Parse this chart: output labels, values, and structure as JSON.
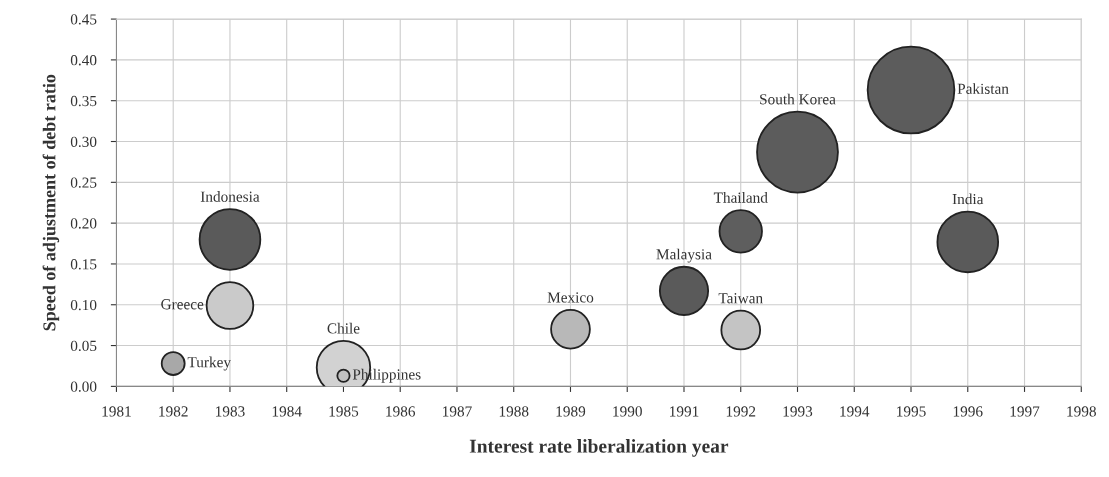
{
  "chart_data": {
    "type": "bubble",
    "xlabel": "Interest rate liberalization year",
    "ylabel": "Speed of adjustment of debt ratio",
    "xlim": [
      1981,
      1998
    ],
    "xticks": [
      1981,
      1982,
      1983,
      1984,
      1985,
      1986,
      1987,
      1988,
      1989,
      1990,
      1991,
      1992,
      1993,
      1994,
      1995,
      1996,
      1997,
      1998
    ],
    "ylim": [
      0,
      0.45
    ],
    "yticks": [
      {
        "value": 0,
        "label": "0.00"
      },
      {
        "value": 0.05,
        "label": "0.05"
      },
      {
        "value": 0.1,
        "label": "0.10"
      },
      {
        "value": 0.15,
        "label": "0.15"
      },
      {
        "value": 0.2,
        "label": "0.20"
      },
      {
        "value": 0.25,
        "label": "0.25"
      },
      {
        "value": 0.3,
        "label": "0.30"
      },
      {
        "value": 0.35,
        "label": "0.35"
      },
      {
        "value": 0.4,
        "label": "0.40"
      },
      {
        "value": 0.45,
        "label": "0.45"
      }
    ],
    "grid": true,
    "legend": false,
    "series": [
      {
        "name": "Turkey",
        "color": "#a8a8a8",
        "x": [
          1982
        ],
        "values": [
          0.028
        ],
        "sizes": [
          0.07
        ]
      },
      {
        "name": "Greece",
        "color": "#cacaca",
        "x": [
          1983
        ],
        "values": [
          0.099
        ],
        "sizes": [
          0.29
        ]
      },
      {
        "name": "Indonesia",
        "color": "#5a5a5a",
        "x": [
          1983
        ],
        "values": [
          0.18
        ],
        "sizes": [
          0.49
        ]
      },
      {
        "name": "Chile",
        "color": "#d2d2d2",
        "x": [
          1985
        ],
        "values": [
          0.023
        ],
        "sizes": [
          0.38
        ]
      },
      {
        "name": "Philippines",
        "color": "#c0c0c0",
        "x": [
          1985
        ],
        "values": [
          0.013
        ],
        "sizes": [
          0.02
        ]
      },
      {
        "name": "Mexico",
        "color": "#b8b8b8",
        "x": [
          1989
        ],
        "values": [
          0.07
        ],
        "sizes": [
          0.2
        ]
      },
      {
        "name": "Malaysia",
        "color": "#5a5a5a",
        "x": [
          1991
        ],
        "values": [
          0.117
        ],
        "sizes": [
          0.31
        ]
      },
      {
        "name": "Taiwan",
        "color": "#c4c4c4",
        "x": [
          1992
        ],
        "values": [
          0.069
        ],
        "sizes": [
          0.2
        ]
      },
      {
        "name": "Thailand",
        "color": "#5e5e5e",
        "x": [
          1992
        ],
        "values": [
          0.19
        ],
        "sizes": [
          0.24
        ]
      },
      {
        "name": "South Korea",
        "color": "#5c5c5c",
        "x": [
          1993
        ],
        "values": [
          0.287
        ],
        "sizes": [
          0.87
        ]
      },
      {
        "name": "Pakistan",
        "color": "#5c5c5c",
        "x": [
          1995
        ],
        "values": [
          0.363
        ],
        "sizes": [
          1
        ]
      },
      {
        "name": "India",
        "color": "#5a5a5a",
        "x": [
          1996
        ],
        "values": [
          0.177
        ],
        "sizes": [
          0.49
        ]
      }
    ]
  }
}
